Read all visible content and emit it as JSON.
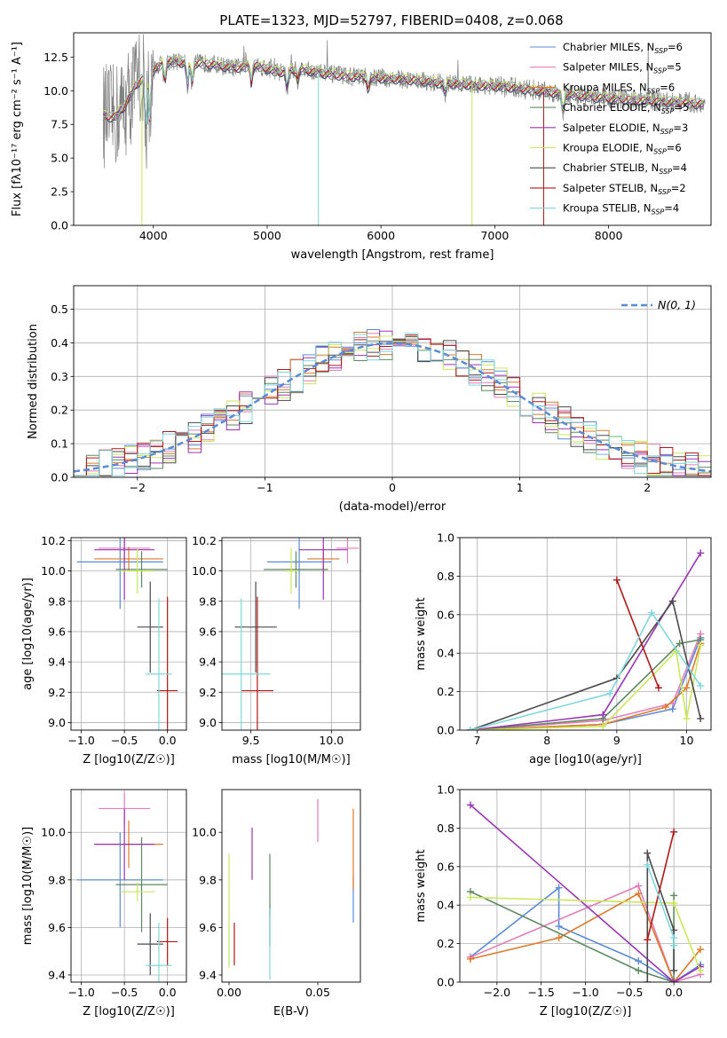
{
  "figure": {
    "title": "PLATE=1323, MJD=52797, FIBERID=0408, z=0.068"
  },
  "colors": {
    "Chabrier MILES": "#5B8BD6",
    "Salpeter MILES": "#E27DB8",
    "Kroupa MILES": "#DE7A2A",
    "Chabrier ELODIE": "#5E8A62",
    "Salpeter ELODIE": "#9A35B3",
    "Kroupa ELODIE": "#C9E85A",
    "Chabrier STELIB": "#4A4A4A",
    "Salpeter STELIB": "#B21818",
    "Kroupa STELIB": "#7FD8DC",
    "data": "#808080"
  },
  "chart_data": [
    {
      "id": "spectrum",
      "type": "line",
      "title": "PLATE=1323, MJD=52797, FIBERID=0408, z=0.068",
      "xlabel": "wavelength [Angstrom, rest frame]",
      "ylabel": "Flux [fλ10⁻¹⁷ erg cm⁻² s⁻¹ A⁻¹]",
      "xlim": [
        3300,
        8900
      ],
      "ylim": [
        0,
        14.3
      ],
      "xticks": [
        4000,
        5000,
        6000,
        7000,
        8000
      ],
      "yticks": [
        0.0,
        2.5,
        5.0,
        7.5,
        10.0,
        12.5
      ],
      "grid": false,
      "legend_position": "top-right",
      "continuum": {
        "x": [
          3550,
          3650,
          3750,
          3850,
          3950,
          4100,
          4300,
          4500,
          4700,
          4900,
          5100,
          5300,
          5500,
          5700,
          5900,
          6100,
          6300,
          6500,
          6700,
          6900,
          7100,
          7300,
          7500,
          7700,
          7900,
          8100,
          8300,
          8500,
          8700,
          8850
        ],
        "y": [
          8.2,
          8.0,
          8.9,
          10.5,
          11.2,
          12.2,
          12.1,
          12.0,
          11.7,
          11.9,
          11.4,
          11.6,
          11.3,
          11.1,
          11.0,
          10.9,
          10.8,
          10.6,
          10.5,
          10.4,
          10.3,
          10.1,
          9.9,
          9.7,
          9.5,
          9.4,
          9.3,
          9.2,
          9.1,
          9.0
        ]
      },
      "legend": [
        {
          "label": "Chabrier MILES, N",
          "sub": "SSP",
          "eq": "=6"
        },
        {
          "label": "Salpeter MILES, N",
          "sub": "SSP",
          "eq": "=5"
        },
        {
          "label": "Kroupa MILES, N",
          "sub": "SSP",
          "eq": "=6"
        },
        {
          "label": "Chabrier ELODIE, N",
          "sub": "SSP",
          "eq": "=5"
        },
        {
          "label": "Salpeter ELODIE, N",
          "sub": "SSP",
          "eq": "=3"
        },
        {
          "label": "Kroupa ELODIE, N",
          "sub": "SSP",
          "eq": "=6"
        },
        {
          "label": "Chabrier STELIB, N",
          "sub": "SSP",
          "eq": "=4"
        },
        {
          "label": "Salpeter STELIB, N",
          "sub": "SSP",
          "eq": "=2"
        },
        {
          "label": "Kroupa STELIB, N",
          "sub": "SSP",
          "eq": "=4"
        }
      ]
    },
    {
      "id": "residuals",
      "type": "line",
      "xlabel": "(data-model)/error",
      "ylabel": "Normed distribution",
      "xlim": [
        -2.5,
        2.5
      ],
      "ylim": [
        0,
        0.57
      ],
      "xticks": [
        -2,
        -1,
        0,
        1,
        2
      ],
      "yticks": [
        0.0,
        0.1,
        0.2,
        0.3,
        0.4,
        0.5
      ],
      "grid": true,
      "legend_position": "top-right",
      "legend": {
        "label": "N(0, 1)"
      },
      "bins": {
        "start": -2.5,
        "width": 0.1
      }
    },
    {
      "id": "z-age",
      "type": "scatter",
      "xlabel": "Z [log10(Z/Z☉)]",
      "ylabel": "age [log10(age/yr)]",
      "xlim": [
        -1.12,
        0.22
      ],
      "ylim": [
        8.95,
        10.22
      ],
      "xticks": [
        -1.0,
        -0.5,
        0.0
      ],
      "yticks": [
        9.0,
        9.2,
        9.4,
        9.6,
        9.8,
        10.0,
        10.2
      ],
      "grid": true,
      "points": [
        {
          "model": "Chabrier MILES",
          "x": -0.55,
          "xerr": 0.5,
          "y": 10.06,
          "yerr": 0.31
        },
        {
          "model": "Salpeter MILES",
          "x": -0.5,
          "xerr": 0.3,
          "y": 10.15,
          "yerr": 0.1
        },
        {
          "model": "Kroupa MILES",
          "x": -0.45,
          "xerr": 0.4,
          "y": 10.08,
          "yerr": 0.08
        },
        {
          "model": "Chabrier ELODIE",
          "x": -0.3,
          "xerr": 0.3,
          "y": 10.01,
          "yerr": 0.12
        },
        {
          "model": "Salpeter ELODIE",
          "x": -0.5,
          "xerr": 0.35,
          "y": 10.14,
          "yerr": 0.33
        },
        {
          "model": "Kroupa ELODIE",
          "x": -0.35,
          "xerr": 0.2,
          "y": 10.0,
          "yerr": 0.15
        },
        {
          "model": "Chabrier STELIB",
          "x": -0.2,
          "xerr": 0.15,
          "y": 9.63,
          "yerr": 0.3
        },
        {
          "model": "Salpeter STELIB",
          "x": 0.0,
          "xerr": 0.12,
          "y": 9.21,
          "yerr": 0.62
        },
        {
          "model": "Kroupa STELIB",
          "x": -0.1,
          "xerr": 0.15,
          "y": 9.32,
          "yerr": 0.5
        }
      ]
    },
    {
      "id": "mass-age",
      "type": "scatter",
      "xlabel": "mass [log10(M/M☉)]",
      "xlim": [
        9.32,
        10.18
      ],
      "ylim": [
        8.95,
        10.22
      ],
      "xticks": [
        9.5,
        10.0
      ],
      "yticks": [
        9.0,
        9.2,
        9.4,
        9.6,
        9.8,
        10.0,
        10.2
      ],
      "grid": true,
      "points": [
        {
          "model": "Chabrier MILES",
          "x": 9.8,
          "xerr": 0.2,
          "y": 10.06,
          "yerr": 0.31
        },
        {
          "model": "Salpeter MILES",
          "x": 10.1,
          "xerr": 0.07,
          "y": 10.15,
          "yerr": 0.1
        },
        {
          "model": "Kroupa MILES",
          "x": 9.95,
          "xerr": 0.1,
          "y": 10.08,
          "yerr": 0.08
        },
        {
          "model": "Chabrier ELODIE",
          "x": 9.78,
          "xerr": 0.2,
          "y": 10.01,
          "yerr": 0.12
        },
        {
          "model": "Salpeter ELODIE",
          "x": 9.95,
          "xerr": 0.15,
          "y": 10.14,
          "yerr": 0.33
        },
        {
          "model": "Kroupa ELODIE",
          "x": 9.75,
          "xerr": 0.04,
          "y": 10.0,
          "yerr": 0.15
        },
        {
          "model": "Chabrier STELIB",
          "x": 9.53,
          "xerr": 0.13,
          "y": 9.63,
          "yerr": 0.3
        },
        {
          "model": "Salpeter STELIB",
          "x": 9.54,
          "xerr": 0.1,
          "y": 9.21,
          "yerr": 0.62
        },
        {
          "model": "Kroupa STELIB",
          "x": 9.44,
          "xerr": 0.18,
          "y": 9.32,
          "yerr": 0.5
        }
      ]
    },
    {
      "id": "age-massweight",
      "type": "line",
      "xlabel": "age [log10(age/yr)]",
      "ylabel": "mass weight",
      "xlim": [
        6.75,
        10.35
      ],
      "ylim": [
        0,
        1.0
      ],
      "xticks": [
        7,
        8,
        9,
        10
      ],
      "yticks": [
        0.0,
        0.2,
        0.4,
        0.6,
        0.8,
        1.0
      ],
      "grid": true,
      "series": [
        {
          "model": "Chabrier MILES",
          "x": [
            6.9,
            8.8,
            9.8,
            10.2
          ],
          "y": [
            0.0,
            0.03,
            0.11,
            0.48
          ]
        },
        {
          "model": "Salpeter MILES",
          "x": [
            6.9,
            8.8,
            9.8,
            10.2
          ],
          "y": [
            0.0,
            0.05,
            0.14,
            0.5
          ]
        },
        {
          "model": "Kroupa MILES",
          "x": [
            6.9,
            8.8,
            9.7,
            10.0,
            10.2
          ],
          "y": [
            0.0,
            0.03,
            0.12,
            0.22,
            0.45
          ]
        },
        {
          "model": "Chabrier ELODIE",
          "x": [
            6.9,
            8.8,
            9.9,
            10.2
          ],
          "y": [
            0.0,
            0.06,
            0.45,
            0.47
          ]
        },
        {
          "model": "Salpeter ELODIE",
          "x": [
            6.9,
            8.8,
            10.2
          ],
          "y": [
            0.0,
            0.08,
            0.92
          ]
        },
        {
          "model": "Kroupa ELODIE",
          "x": [
            6.9,
            8.8,
            9.85,
            10.0,
            10.2
          ],
          "y": [
            0.0,
            0.02,
            0.41,
            0.06,
            0.44
          ]
        },
        {
          "model": "Chabrier STELIB",
          "x": [
            6.9,
            9.0,
            9.8,
            10.2
          ],
          "y": [
            0.0,
            0.27,
            0.67,
            0.06
          ]
        },
        {
          "model": "Salpeter STELIB",
          "x": [
            9.0,
            9.6
          ],
          "y": [
            0.78,
            0.22
          ]
        },
        {
          "model": "Kroupa STELIB",
          "x": [
            6.9,
            8.9,
            9.5,
            10.2
          ],
          "y": [
            0.0,
            0.19,
            0.61,
            0.23
          ]
        }
      ]
    },
    {
      "id": "z-mass",
      "type": "scatter",
      "xlabel": "Z [log10(Z/Z☉)]",
      "ylabel": "mass [log10(M/M☉)]",
      "xlim": [
        -1.12,
        0.22
      ],
      "ylim": [
        9.37,
        10.18
      ],
      "xticks": [
        -1.0,
        -0.5,
        0.0
      ],
      "yticks": [
        9.4,
        9.6,
        9.8,
        10.0
      ],
      "grid": true,
      "points": [
        {
          "model": "Chabrier MILES",
          "x": -0.55,
          "xerr": 0.5,
          "y": 9.8,
          "yerr": 0.2
        },
        {
          "model": "Salpeter MILES",
          "x": -0.5,
          "xerr": 0.3,
          "y": 10.1,
          "yerr": 0.07
        },
        {
          "model": "Kroupa MILES",
          "x": -0.45,
          "xerr": 0.4,
          "y": 9.95,
          "yerr": 0.1
        },
        {
          "model": "Chabrier ELODIE",
          "x": -0.3,
          "xerr": 0.3,
          "y": 9.78,
          "yerr": 0.2
        },
        {
          "model": "Salpeter ELODIE",
          "x": -0.5,
          "xerr": 0.35,
          "y": 9.95,
          "yerr": 0.15
        },
        {
          "model": "Kroupa ELODIE",
          "x": -0.35,
          "xerr": 0.2,
          "y": 9.75,
          "yerr": 0.04
        },
        {
          "model": "Chabrier STELIB",
          "x": -0.2,
          "xerr": 0.15,
          "y": 9.53,
          "yerr": 0.13
        },
        {
          "model": "Salpeter STELIB",
          "x": 0.0,
          "xerr": 0.12,
          "y": 9.54,
          "yerr": 0.1
        },
        {
          "model": "Kroupa STELIB",
          "x": -0.1,
          "xerr": 0.15,
          "y": 9.44,
          "yerr": 0.18
        }
      ]
    },
    {
      "id": "ebv-mass",
      "type": "scatter",
      "xlabel": "E(B-V)",
      "xlim": [
        -0.004,
        0.074
      ],
      "ylim": [
        9.37,
        10.18
      ],
      "xticks": [
        0.0,
        0.05
      ],
      "yticks": [
        9.4,
        9.6,
        9.8,
        10.0
      ],
      "grid": false,
      "points": [
        {
          "model": "Chabrier MILES",
          "x": 0.07,
          "y": 9.72,
          "yerr": 0.1
        },
        {
          "model": "Salpeter MILES",
          "x": 0.05,
          "y": 10.05,
          "yerr": 0.09
        },
        {
          "model": "Kroupa MILES",
          "x": 0.07,
          "y": 9.93,
          "yerr": 0.17
        },
        {
          "model": "Chabrier ELODIE",
          "x": 0.023,
          "y": 9.78,
          "yerr": 0.13
        },
        {
          "model": "Salpeter ELODIE",
          "x": 0.013,
          "y": 9.91,
          "yerr": 0.11
        },
        {
          "model": "Kroupa ELODIE",
          "x": 0.0,
          "y": 9.67,
          "yerr": 0.24
        },
        {
          "model": "Chabrier STELIB",
          "x": 0.023,
          "y": 9.6,
          "yerr": 0.08
        },
        {
          "model": "Salpeter STELIB",
          "x": 0.003,
          "y": 9.53,
          "yerr": 0.09
        },
        {
          "model": "Kroupa STELIB",
          "x": 0.023,
          "y": 9.53,
          "yerr": 0.15
        }
      ]
    },
    {
      "id": "z-massweight",
      "type": "line",
      "xlabel": "Z [log10(Z/Z☉)]",
      "ylabel": "mass weight",
      "xlim": [
        -2.42,
        0.42
      ],
      "ylim": [
        0,
        1.0
      ],
      "xticks": [
        -2.0,
        -1.5,
        -1.0,
        -0.5,
        0.0
      ],
      "yticks": [
        0.0,
        0.2,
        0.4,
        0.6,
        0.8,
        1.0
      ],
      "grid": true,
      "series": [
        {
          "model": "Chabrier MILES",
          "x": [
            -2.3,
            -1.3,
            -1.3,
            -0.4,
            0.0,
            0.3
          ],
          "y": [
            0.13,
            0.49,
            0.29,
            0.11,
            0.0,
            0.09
          ]
        },
        {
          "model": "Salpeter MILES",
          "x": [
            -2.3,
            -0.4,
            0.0,
            0.3
          ],
          "y": [
            0.13,
            0.5,
            0.0,
            0.04
          ]
        },
        {
          "model": "Kroupa MILES",
          "x": [
            -2.3,
            -1.3,
            -0.4,
            0.0,
            0.3
          ],
          "y": [
            0.12,
            0.23,
            0.46,
            0.0,
            0.17
          ]
        },
        {
          "model": "Chabrier ELODIE",
          "x": [
            -2.3,
            -0.4,
            0.0,
            0.0
          ],
          "y": [
            0.47,
            0.06,
            0.0,
            0.45
          ]
        },
        {
          "model": "Salpeter ELODIE",
          "x": [
            -2.3,
            0.0,
            0.3
          ],
          "y": [
            0.92,
            0.0,
            0.08
          ]
        },
        {
          "model": "Kroupa ELODIE",
          "x": [
            -2.3,
            0.0,
            0.3
          ],
          "y": [
            0.44,
            0.41,
            0.06
          ]
        },
        {
          "model": "Chabrier STELIB",
          "x": [
            -0.3,
            -0.3,
            0.0,
            0.0
          ],
          "y": [
            0.0,
            0.67,
            0.27,
            0.06
          ]
        },
        {
          "model": "Salpeter STELIB",
          "x": [
            -0.3,
            0.0
          ],
          "y": [
            0.22,
            0.78
          ]
        },
        {
          "model": "Kroupa STELIB",
          "x": [
            -0.3,
            0.0,
            0.0
          ],
          "y": [
            0.61,
            0.23,
            0.19
          ]
        }
      ]
    }
  ]
}
